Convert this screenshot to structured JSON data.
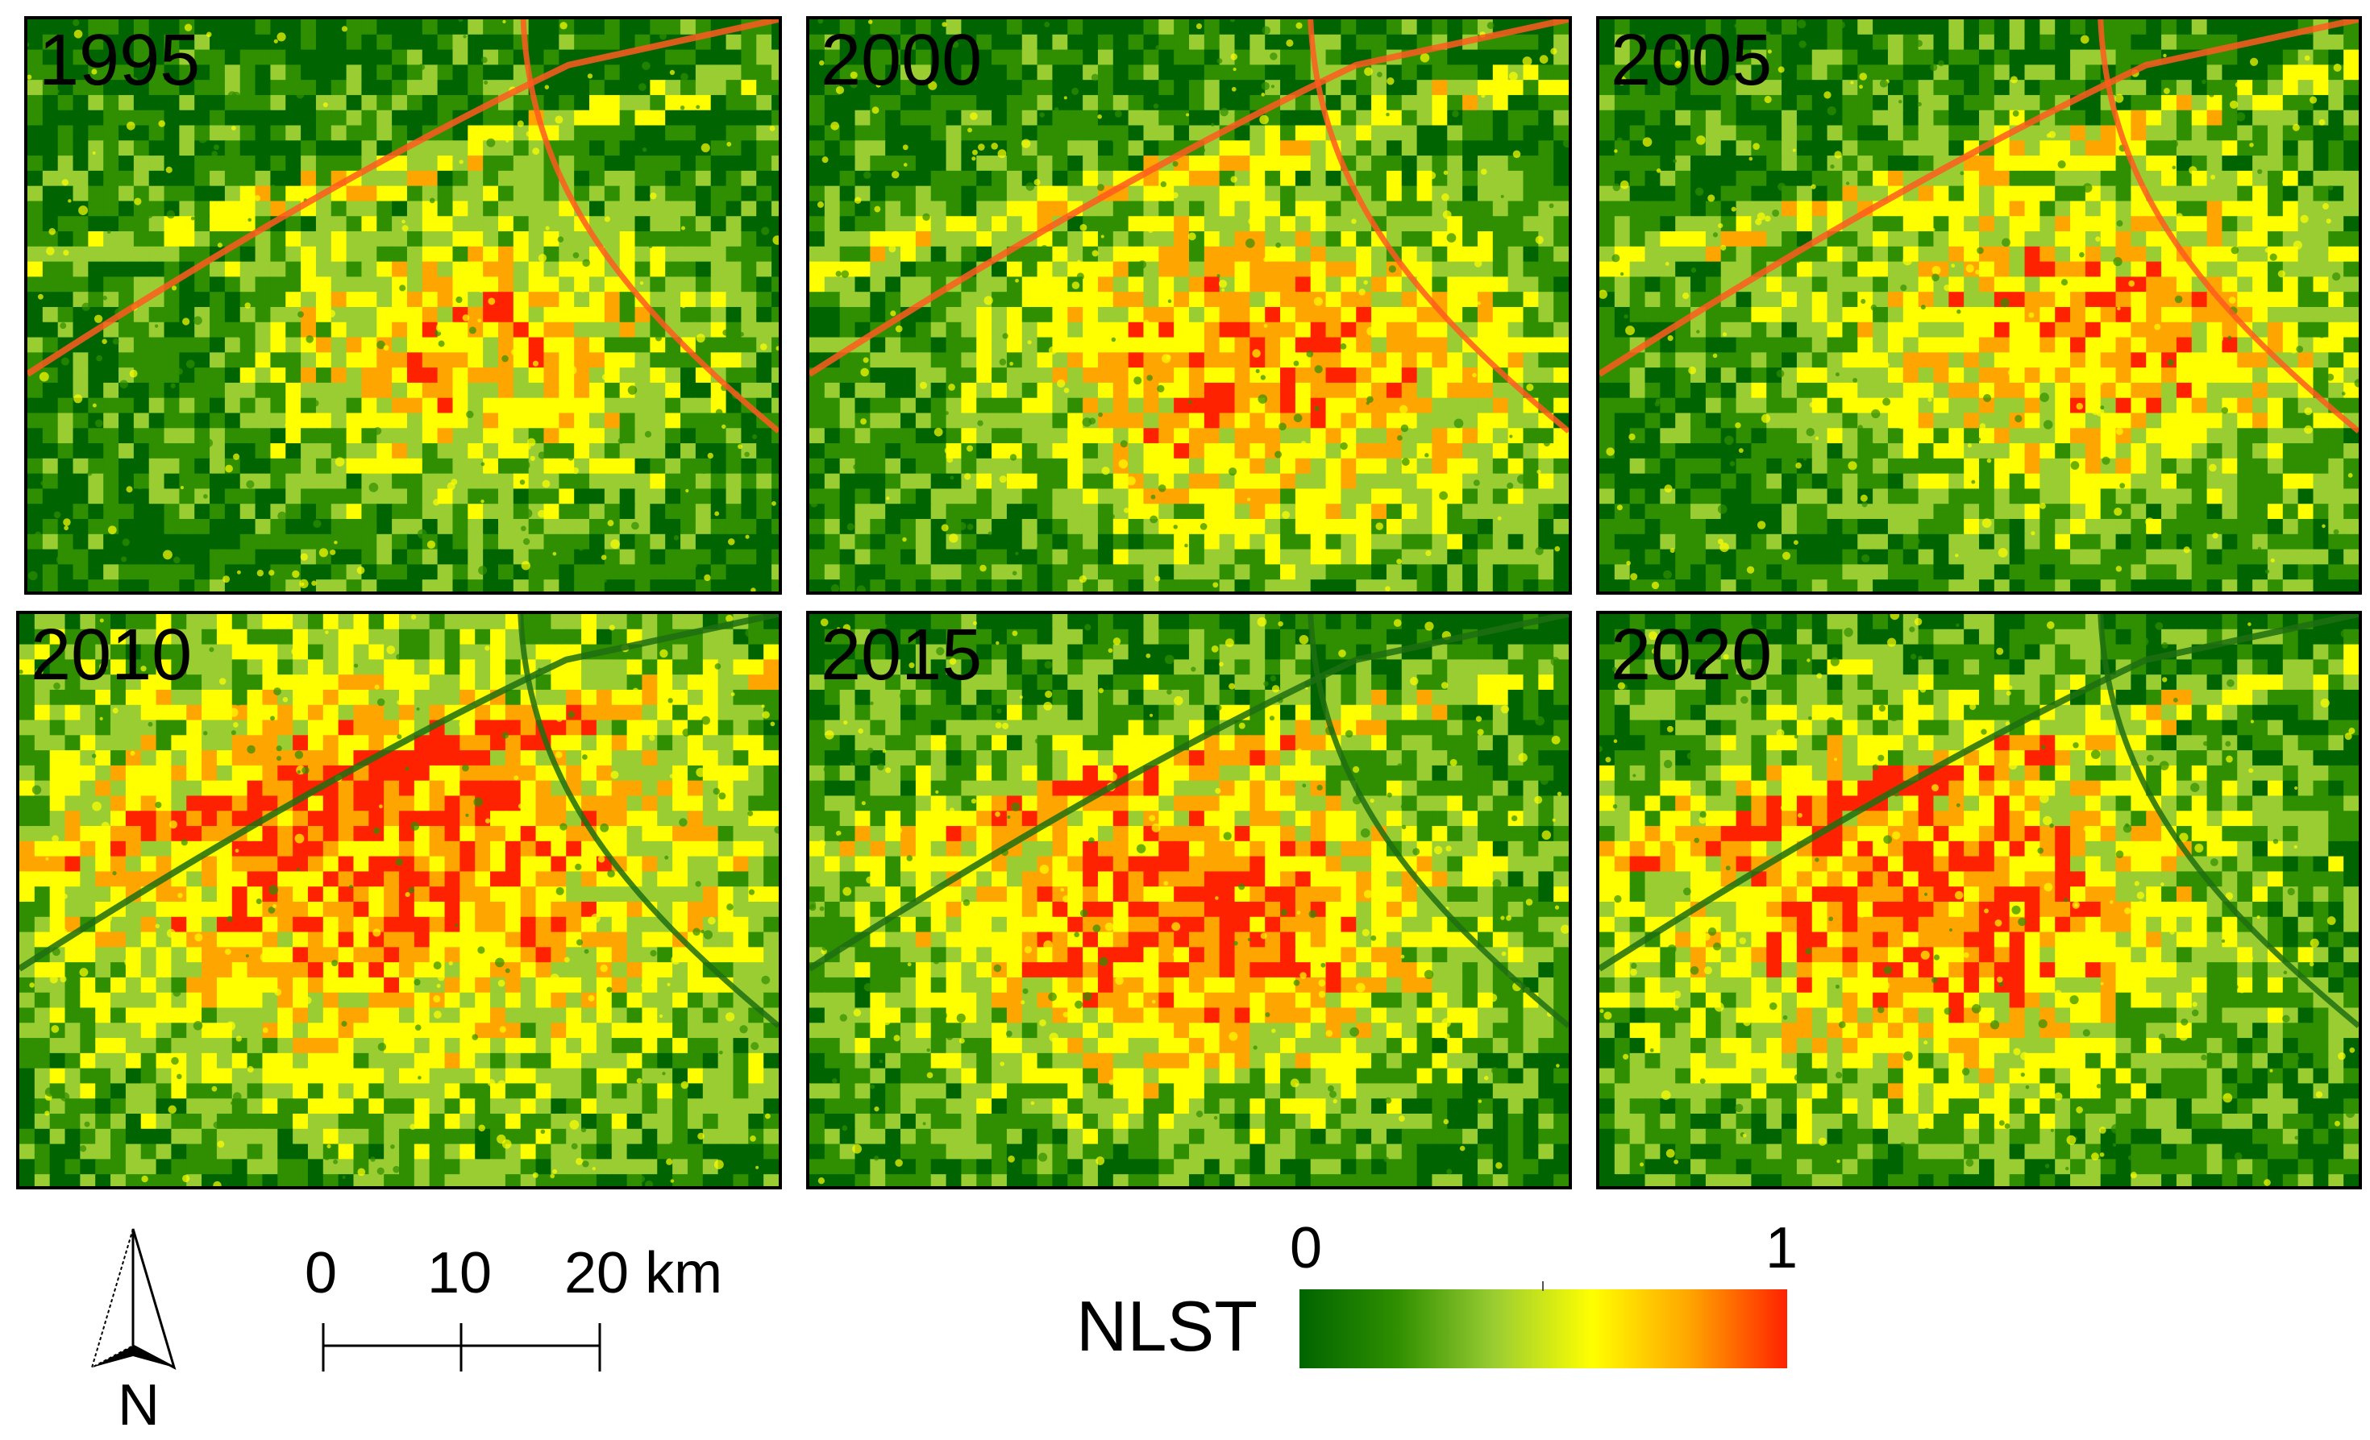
{
  "panels": [
    {
      "year": "1995"
    },
    {
      "year": "2000"
    },
    {
      "year": "2005"
    },
    {
      "year": "2010"
    },
    {
      "year": "2015"
    },
    {
      "year": "2020"
    }
  ],
  "north_arrow": {
    "label": "N"
  },
  "scale_bar": {
    "ticks": [
      "0",
      "10",
      "20 km"
    ]
  },
  "legend": {
    "title": "NLST",
    "min": "0",
    "max": "1",
    "colors": [
      "#006400",
      "#2f8f00",
      "#9acd32",
      "#ffff00",
      "#ffa500",
      "#ff2200"
    ]
  }
}
